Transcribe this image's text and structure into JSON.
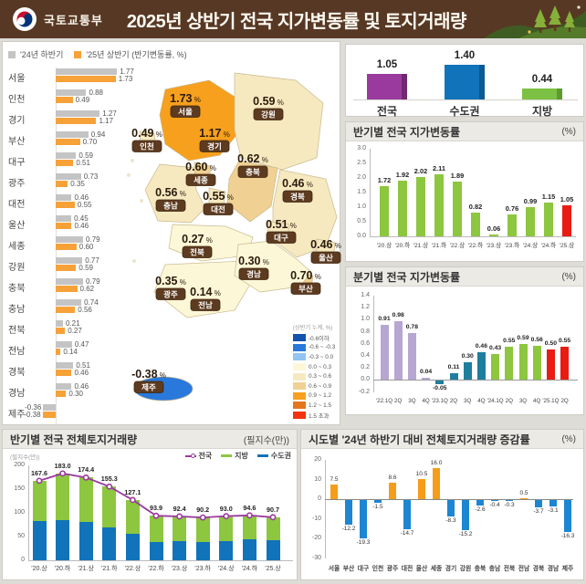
{
  "header": {
    "agency": "국토교통부",
    "title": "2025년 상반기 전국 지가변동률 및 토지거래량"
  },
  "panels": {
    "half": {
      "title": "반기별 전국 지가변동률",
      "unit": "(%)"
    },
    "quarter": {
      "title": "분기별 전국 지가변동률",
      "unit": "(%)"
    },
    "transactions": {
      "title": "반기별 전국 전체토지거래량",
      "unit": "(필지수(만))",
      "axis_note": "(필지수(만))"
    },
    "change": {
      "title": "시도별 '24년 하반기 대비 전체토지거래량 증감률",
      "unit": "(%)"
    }
  },
  "region_compare": {
    "legend": [
      {
        "label": "'24년 하반기",
        "color": "#c4c4c4"
      },
      {
        "label": "'25년 상반기 (반기변동률, %)",
        "color": "#f7a139"
      }
    ],
    "rows": [
      {
        "name": "서울",
        "h2_2024": 1.77,
        "h1_2025": 1.73
      },
      {
        "name": "인천",
        "h2_2024": 0.88,
        "h1_2025": 0.49
      },
      {
        "name": "경기",
        "h2_2024": 1.27,
        "h1_2025": 1.17
      },
      {
        "name": "부산",
        "h2_2024": 0.94,
        "h1_2025": 0.7
      },
      {
        "name": "대구",
        "h2_2024": 0.59,
        "h1_2025": 0.51
      },
      {
        "name": "광주",
        "h2_2024": 0.73,
        "h1_2025": 0.35
      },
      {
        "name": "대전",
        "h2_2024": 0.46,
        "h1_2025": 0.55
      },
      {
        "name": "울산",
        "h2_2024": 0.45,
        "h1_2025": 0.46
      },
      {
        "name": "세종",
        "h2_2024": 0.79,
        "h1_2025": 0.6
      },
      {
        "name": "강원",
        "h2_2024": 0.77,
        "h1_2025": 0.59
      },
      {
        "name": "충북",
        "h2_2024": 0.79,
        "h1_2025": 0.62
      },
      {
        "name": "충남",
        "h2_2024": 0.74,
        "h1_2025": 0.56
      },
      {
        "name": "전북",
        "h2_2024": 0.21,
        "h1_2025": 0.27
      },
      {
        "name": "전남",
        "h2_2024": 0.47,
        "h1_2025": 0.14
      },
      {
        "name": "경북",
        "h2_2024": 0.51,
        "h1_2025": 0.46
      },
      {
        "name": "경남",
        "h2_2024": 0.46,
        "h1_2025": 0.3
      },
      {
        "name": "제주",
        "h2_2024": -0.36,
        "h1_2025": -0.38
      }
    ]
  },
  "map": {
    "legend_title": "(상반기 누계, %)",
    "legend": [
      {
        "label": "-0.6이하",
        "color": "#1353ae"
      },
      {
        "label": "-0.6 ~ -0.3",
        "color": "#2979dd"
      },
      {
        "label": "-0.3 ~ 0.0",
        "color": "#93c4f2"
      },
      {
        "label": "0.0 ~ 0.3",
        "color": "#fcf7d7"
      },
      {
        "label": "0.3 ~ 0.6",
        "color": "#f6e9c0"
      },
      {
        "label": "0.6 ~ 0.9",
        "color": "#f0d193"
      },
      {
        "label": "0.9 ~ 1.2",
        "color": "#f7a01d"
      },
      {
        "label": "1.2 ~ 1.5",
        "color": "#e4761b"
      },
      {
        "label": "1.5 초과",
        "color": "#f3330e"
      }
    ],
    "regions": [
      {
        "name": "서울",
        "value": "1.73",
        "cat": 8
      },
      {
        "name": "경기",
        "value": "1.17",
        "cat": 6
      },
      {
        "name": "인천",
        "value": "0.49",
        "cat": 4
      },
      {
        "name": "강원",
        "value": "0.59",
        "cat": 4
      },
      {
        "name": "충북",
        "value": "0.62",
        "cat": 5
      },
      {
        "name": "세종",
        "value": "0.60",
        "cat": 5
      },
      {
        "name": "대전",
        "value": "0.55",
        "cat": 4
      },
      {
        "name": "충남",
        "value": "0.56",
        "cat": 4
      },
      {
        "name": "경북",
        "value": "0.46",
        "cat": 4
      },
      {
        "name": "대구",
        "value": "0.51",
        "cat": 4
      },
      {
        "name": "울산",
        "value": "0.46",
        "cat": 4
      },
      {
        "name": "부산",
        "value": "0.70",
        "cat": 5
      },
      {
        "name": "전북",
        "value": "0.27",
        "cat": 3
      },
      {
        "name": "광주",
        "value": "0.35",
        "cat": 4
      },
      {
        "name": "전남",
        "value": "0.14",
        "cat": 3
      },
      {
        "name": "경남",
        "value": "0.30",
        "cat": 3
      },
      {
        "name": "제주",
        "value": "-0.38",
        "cat": 1
      }
    ]
  },
  "chart_data": [
    {
      "id": "summary",
      "type": "bar",
      "categories": [
        "전국",
        "수도권",
        "지방"
      ],
      "values": [
        1.05,
        1.4,
        0.44
      ],
      "colors": [
        "#9a3a9e",
        "#1173ba",
        "#7cc143"
      ],
      "shade_colors": [
        "#71286f",
        "#0b5a94",
        "#5e9b2d"
      ]
    },
    {
      "id": "half_yearly",
      "type": "bar",
      "title": "반기별 전국 지가변동률",
      "unit": "(%)",
      "categories": [
        "'20.상",
        "'20.하",
        "'21.상",
        "'21.하",
        "'22.상",
        "'22.하",
        "'23.상",
        "'23.하",
        "'24.상",
        "'24.하",
        "'25.상"
      ],
      "values": [
        1.72,
        1.92,
        2.02,
        2.11,
        1.89,
        0.82,
        0.06,
        0.76,
        0.99,
        1.15,
        1.05
      ],
      "bar_color": "#8dc63f",
      "highlight_last_color": "#e91c13",
      "ylim": [
        0,
        3.0
      ],
      "ytick_step": 0.5
    },
    {
      "id": "quarterly",
      "type": "bar",
      "title": "분기별 전국 지가변동률",
      "unit": "(%)",
      "categories": [
        "'22.1Q",
        "2Q",
        "3Q",
        "4Q",
        "'23.1Q",
        "2Q",
        "3Q",
        "4Q",
        "'24.1Q",
        "2Q",
        "3Q",
        "4Q",
        "'25.1Q",
        "2Q"
      ],
      "values": [
        0.91,
        0.98,
        0.78,
        0.04,
        -0.05,
        0.11,
        0.3,
        0.46,
        0.43,
        0.55,
        0.59,
        0.56,
        0.5,
        0.55
      ],
      "groups": [
        0,
        0,
        0,
        0,
        1,
        1,
        1,
        1,
        2,
        2,
        2,
        2,
        3,
        3
      ],
      "group_colors": [
        "#b7a6d1",
        "#1f7e9e",
        "#8dc63f",
        "#e91c13"
      ],
      "ylim": [
        -0.2,
        1.4
      ],
      "ytick_step": 0.2
    },
    {
      "id": "transactions",
      "type": "stacked_bar_line",
      "title": "반기별 전국 전체토지거래량",
      "unit": "(필지수(만))",
      "categories": [
        "'20.상",
        "'20.하",
        "'21.상",
        "'21.하",
        "'22.상",
        "'22.하",
        "'23.상",
        "'23.하",
        "'24.상",
        "'24.하",
        "'25.상"
      ],
      "line": {
        "name": "전국",
        "color": "#9a3a9e",
        "values": [
          167.6,
          183.0,
          174.4,
          155.3,
          127.1,
          93.9,
          92.4,
          90.2,
          93.0,
          94.6,
          90.7
        ]
      },
      "bars": [
        {
          "name": "수도권",
          "color": "#1173ba",
          "values": [
            83,
            84,
            80,
            70,
            55,
            39,
            40,
            39,
            41,
            45,
            43
          ]
        },
        {
          "name": "지방",
          "color": "#8dc63f",
          "values": [
            84.6,
            99.0,
            94.4,
            85.3,
            72.1,
            54.9,
            52.4,
            51.2,
            52.0,
            49.6,
            47.7
          ]
        }
      ],
      "legend_order": [
        "전국",
        "지방",
        "수도권"
      ],
      "ylim": [
        0,
        200
      ],
      "ytick_step": 50
    },
    {
      "id": "regional_change",
      "type": "bar",
      "title": "시도별 '24년 하반기 대비 전체토지거래량 증감률",
      "unit": "(%)",
      "categories": [
        "서울",
        "부산",
        "대구",
        "인천",
        "광주",
        "대전",
        "울산",
        "세종",
        "경기",
        "강원",
        "충북",
        "충남",
        "전북",
        "전남",
        "경북",
        "경남",
        "제주"
      ],
      "values": [
        7.5,
        -12.2,
        -19.3,
        -1.5,
        8.6,
        -14.7,
        10.5,
        16.0,
        -8.3,
        -15.2,
        -2.6,
        -0.4,
        -0.3,
        0.5,
        -3.7,
        -3.1,
        -16.3
      ],
      "pos_color": "#f59c1b",
      "neg_color": "#1c86d2",
      "ylim": [
        -30,
        20
      ],
      "ytick_step": 10
    }
  ]
}
